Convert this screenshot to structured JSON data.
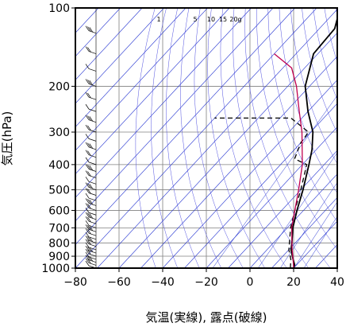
{
  "chart_data": {
    "type": "line",
    "subtype": "skew-t log-p sounding",
    "title": "",
    "xlabel": "気温(実線), 露点(破線)",
    "ylabel": "気圧(hPa)",
    "xlim": [
      -80,
      40
    ],
    "ylim": [
      1000,
      100
    ],
    "y_scale": "log",
    "x_ticks": [
      -80,
      -60,
      -40,
      -20,
      0,
      20,
      40
    ],
    "x_tick_labels": [
      "−80",
      "−60",
      "−40",
      "−20",
      "0",
      "20",
      "40"
    ],
    "y_ticks": [
      1000,
      900,
      800,
      700,
      600,
      500,
      400,
      300,
      200,
      100
    ],
    "y_tick_labels": [
      "1000",
      "900",
      "800",
      "700",
      "600",
      "500",
      "400",
      "300",
      "200",
      "100"
    ],
    "mixing_ratio_labels": [
      "1",
      "5",
      "10",
      "15",
      "20g"
    ],
    "grid": true,
    "series": [
      {
        "role": "temperature",
        "style": "solid",
        "color": "#000000",
        "points": [
          {
            "p": 1000,
            "t": 20
          },
          {
            "p": 970,
            "t": 19
          },
          {
            "p": 925,
            "t": 16
          },
          {
            "p": 850,
            "t": 11
          },
          {
            "p": 800,
            "t": 8.5
          },
          {
            "p": 700,
            "t": 2.5
          },
          {
            "p": 600,
            "t": -3
          },
          {
            "p": 500,
            "t": -9
          },
          {
            "p": 400,
            "t": -17
          },
          {
            "p": 350,
            "t": -22
          },
          {
            "p": 300,
            "t": -29
          },
          {
            "p": 250,
            "t": -40
          },
          {
            "p": 200,
            "t": -52
          },
          {
            "p": 150,
            "t": -62
          },
          {
            "p": 120,
            "t": -63
          },
          {
            "p": 110,
            "t": -66
          },
          {
            "p": 100,
            "t": -69
          }
        ]
      },
      {
        "role": "dewpoint",
        "style": "dashed",
        "color": "#000000",
        "points": [
          {
            "p": 1000,
            "t": 18.5
          },
          {
            "p": 925,
            "t": 15
          },
          {
            "p": 850,
            "t": 10
          },
          {
            "p": 700,
            "t": 1.5
          },
          {
            "p": 600,
            "t": -4
          },
          {
            "p": 500,
            "t": -10
          },
          {
            "p": 400,
            "t": -18
          },
          {
            "p": 380,
            "t": -26
          },
          {
            "p": 330,
            "t": -30
          },
          {
            "p": 300,
            "t": -31
          },
          {
            "p": 265,
            "t": -45
          },
          {
            "p": 265,
            "t": -80
          }
        ]
      },
      {
        "role": "parcel path",
        "style": "solid",
        "color": "#c0004f",
        "points": [
          {
            "p": 1000,
            "t": 20
          },
          {
            "p": 925,
            "t": 16
          },
          {
            "p": 850,
            "t": 11.5
          },
          {
            "p": 700,
            "t": 2
          },
          {
            "p": 600,
            "t": -4
          },
          {
            "p": 500,
            "t": -11
          },
          {
            "p": 400,
            "t": -20
          },
          {
            "p": 300,
            "t": -34
          },
          {
            "p": 250,
            "t": -44
          },
          {
            "p": 200,
            "t": -56
          },
          {
            "p": 170,
            "t": -66
          },
          {
            "p": 150,
            "t": -80
          }
        ]
      }
    ],
    "wind_barb_pressures": [
      1000,
      975,
      950,
      925,
      900,
      875,
      850,
      825,
      800,
      775,
      750,
      725,
      700,
      675,
      650,
      625,
      600,
      575,
      550,
      525,
      500,
      475,
      450,
      425,
      400,
      375,
      350,
      325,
      300,
      275,
      250,
      225,
      200,
      175,
      150,
      125,
      100
    ],
    "colors": {
      "grid": "#808080",
      "isotherm": "#2030d0",
      "adiabat": "#5050e0",
      "frame": "#000000"
    }
  }
}
